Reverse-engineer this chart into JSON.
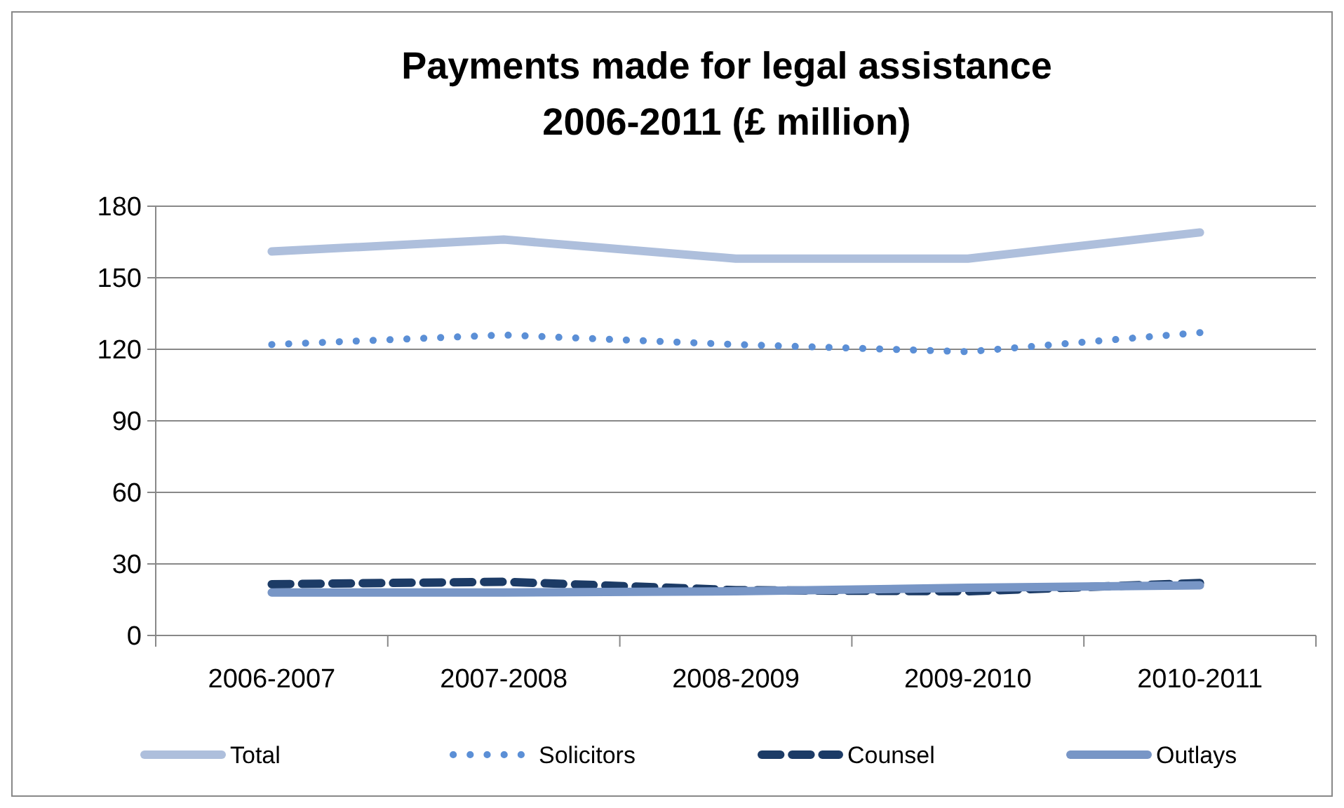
{
  "chart_data": {
    "type": "line",
    "title": "Payments made for legal assistance\n2006-2011 (£ million)",
    "categories": [
      "2006-2007",
      "2007-2008",
      "2008-2009",
      "2009-2010",
      "2010-2011"
    ],
    "series": [
      {
        "name": "Total",
        "color": "#aebfdc",
        "line_style": "solid",
        "values": [
          161,
          166,
          158,
          158,
          169
        ]
      },
      {
        "name": "Solicitors",
        "color": "#5b8fd6",
        "line_style": "dotted",
        "values": [
          122,
          126,
          122,
          119,
          127
        ]
      },
      {
        "name": "Counsel",
        "color": "#1c3b66",
        "line_style": "dashed",
        "values": [
          21.5,
          22.5,
          19,
          18.5,
          22
        ]
      },
      {
        "name": "Outlays",
        "color": "#7896c6",
        "line_style": "solid",
        "values": [
          18,
          18,
          18.5,
          20,
          21
        ]
      }
    ],
    "ylim": [
      0,
      180
    ],
    "yticks": [
      0,
      30,
      60,
      90,
      120,
      150,
      180
    ],
    "grid": "y",
    "legend": "bottom"
  }
}
